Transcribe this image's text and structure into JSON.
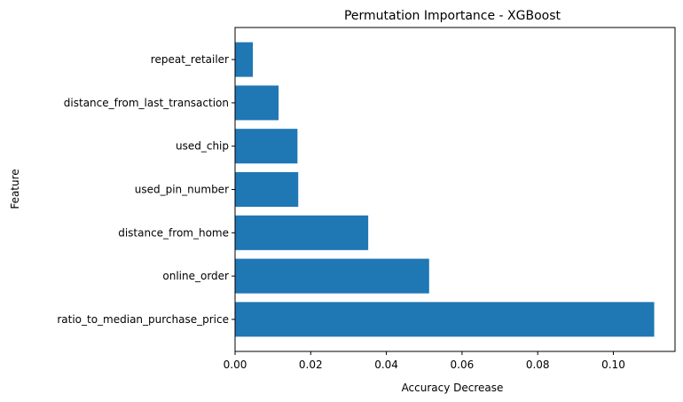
{
  "chart_data": {
    "type": "bar",
    "orientation": "horizontal",
    "title": "Permutation Importance - XGBoost",
    "xlabel": "Accuracy Decrease",
    "ylabel": "Feature",
    "categories": [
      "ratio_to_median_purchase_price",
      "online_order",
      "distance_from_home",
      "used_pin_number",
      "used_chip",
      "distance_from_last_transaction",
      "repeat_retailer"
    ],
    "values": [
      0.1108,
      0.0513,
      0.0352,
      0.0167,
      0.0165,
      0.0115,
      0.0047
    ],
    "xlim": [
      0,
      0.1163
    ],
    "xticks": [
      0.0,
      0.02,
      0.04,
      0.06,
      0.08,
      0.1
    ],
    "xtick_labels": [
      "0.00",
      "0.02",
      "0.04",
      "0.06",
      "0.08",
      "0.10"
    ],
    "bar_color": "#1f77b4",
    "grid": false,
    "legend": "none"
  }
}
